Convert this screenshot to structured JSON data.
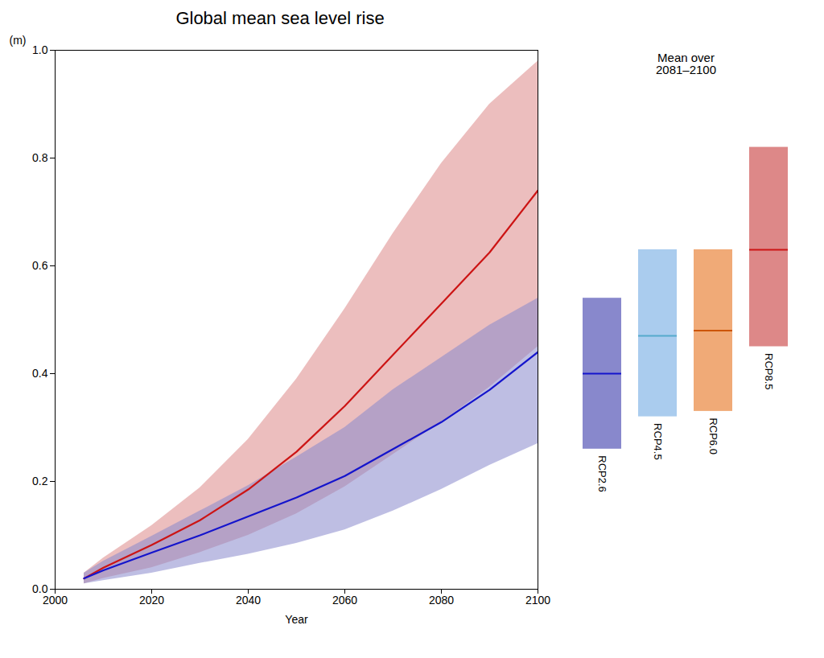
{
  "chart_data": [
    {
      "type": "line",
      "title": "Global mean sea level rise",
      "x_label": "Year",
      "y_label": "(m)",
      "x": [
        2006,
        2010,
        2020,
        2030,
        2040,
        2050,
        2060,
        2070,
        2080,
        2090,
        2100
      ],
      "series": [
        {
          "type": "area",
          "color": "#dd8888",
          "lower": [
            0.01,
            0.02,
            0.04,
            0.068,
            0.1,
            0.14,
            0.19,
            0.25,
            0.31,
            0.375,
            0.45
          ],
          "upper": [
            0.03,
            0.058,
            0.118,
            0.188,
            0.278,
            0.39,
            0.52,
            0.66,
            0.79,
            0.9,
            0.98
          ]
        },
        {
          "type": "area",
          "color": "#8888cc",
          "lower": [
            0.01,
            0.016,
            0.03,
            0.048,
            0.065,
            0.085,
            0.11,
            0.145,
            0.185,
            0.23,
            0.27
          ],
          "upper": [
            0.03,
            0.052,
            0.098,
            0.145,
            0.192,
            0.245,
            0.3,
            0.37,
            0.43,
            0.49,
            0.54
          ]
        },
        {
          "type": "line",
          "color": "#cc1414",
          "values": [
            0.02,
            0.04,
            0.082,
            0.128,
            0.185,
            0.255,
            0.34,
            0.435,
            0.53,
            0.625,
            0.74
          ]
        },
        {
          "type": "line",
          "color": "#1414cc",
          "values": [
            0.02,
            0.035,
            0.068,
            0.1,
            0.135,
            0.17,
            0.21,
            0.26,
            0.31,
            0.37,
            0.44
          ]
        }
      ],
      "xlim": [
        2000,
        2100
      ],
      "ylim": [
        0.0,
        1.0
      ],
      "xticks": [
        2000,
        2020,
        2040,
        2060,
        2080,
        2100
      ],
      "yticks": [
        {
          "value": 0.0,
          "label": "0.0"
        },
        0.2,
        0.4,
        0.6,
        0.8,
        {
          "value": 1.0,
          "label": "1.0"
        }
      ]
    },
    {
      "type": "bar",
      "title": "Mean over\n2081–2100",
      "categories": [
        "RCP2.6",
        "RCP4.5",
        "RCP6.0",
        "RCP8.5"
      ],
      "series": [
        {
          "type": "bar",
          "colors": [
            "#8888cc",
            "#aaccee",
            "#f0aa77",
            "#dd8888"
          ],
          "low": [
            0.26,
            0.32,
            0.33,
            0.45
          ],
          "high": [
            0.54,
            0.63,
            0.63,
            0.82
          ]
        },
        {
          "type": "tick",
          "colors": [
            "#1414cc",
            "#55aacc",
            "#cc5500",
            "#cc1414"
          ],
          "values": [
            0.4,
            0.47,
            0.48,
            0.63
          ]
        }
      ],
      "ylim": [
        0.0,
        1.0
      ],
      "tick_labels": false
    }
  ]
}
